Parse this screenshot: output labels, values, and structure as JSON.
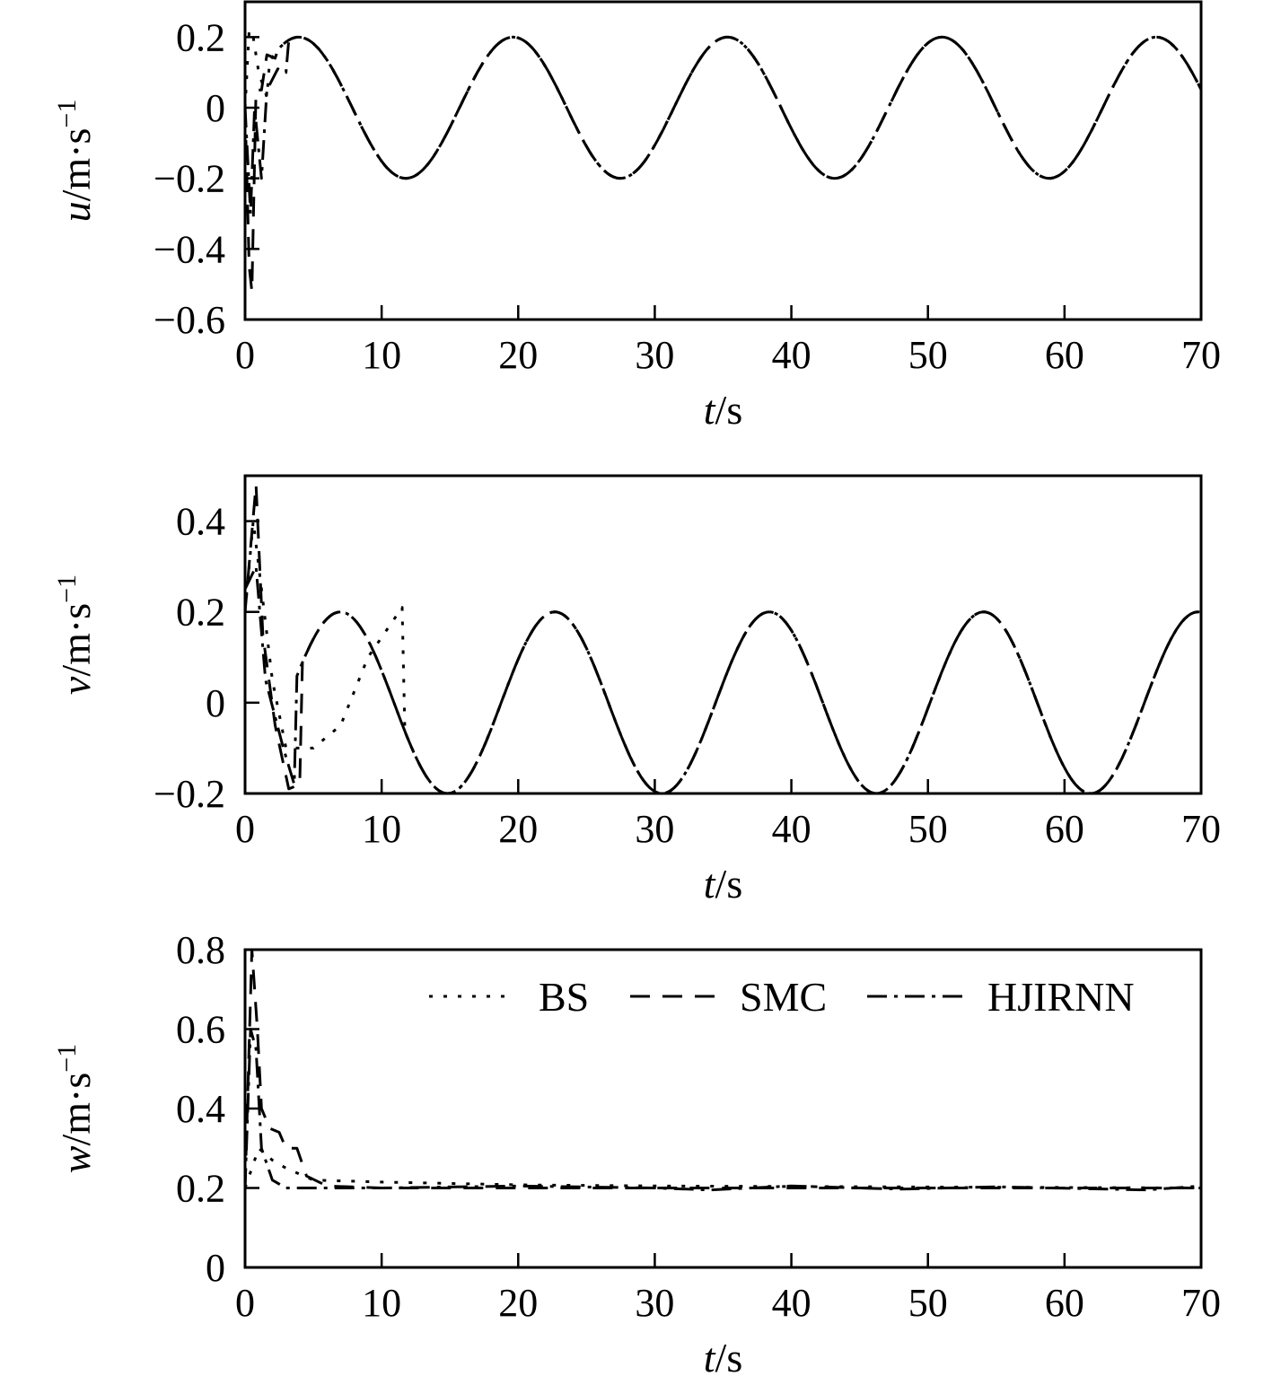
{
  "chart_data": [
    {
      "type": "line",
      "xlabel": {
        "var": "t",
        "unit": "/s"
      },
      "ylabel": {
        "var": "u",
        "unit": "/m·s",
        "exp": "−1"
      },
      "xlim": [
        0,
        70
      ],
      "ylim": [
        -0.6,
        0.3
      ],
      "xticks": [
        0,
        10,
        20,
        30,
        40,
        50,
        60,
        70
      ],
      "xtick_labels": [
        "0",
        "10",
        "20",
        "30",
        "40",
        "50",
        "60",
        "70"
      ],
      "yticks": [
        -0.6,
        -0.4,
        -0.2,
        0,
        0.2
      ],
      "ytick_labels": [
        "−0.6",
        "−0.4",
        "−0.2",
        "0",
        "0.2"
      ],
      "steady": {
        "kind": "sin",
        "amplitude": 0.2,
        "period": 15.7,
        "phase_deg": 0
      },
      "series": [
        {
          "name": "BS",
          "style": "dotted",
          "transient": [
            [
              0,
              0
            ],
            [
              0.3,
              0.22
            ],
            [
              0.6,
              0.2
            ],
            [
              1.0,
              0.1
            ],
            [
              1.6,
              0.03
            ]
          ]
        },
        {
          "name": "SMC",
          "style": "dashed",
          "transient": [
            [
              0,
              0
            ],
            [
              0.3,
              -0.45
            ],
            [
              0.5,
              -0.52
            ],
            [
              0.8,
              0.05
            ],
            [
              1.2,
              0.05
            ],
            [
              1.6,
              0.15
            ],
            [
              2.2,
              0.14
            ]
          ]
        },
        {
          "name": "HJIRNN",
          "style": "dashdot",
          "transient": [
            [
              0,
              0
            ],
            [
              0.4,
              -0.3
            ],
            [
              0.7,
              0
            ],
            [
              1.2,
              -0.2
            ],
            [
              1.6,
              0.05
            ],
            [
              2.4,
              0.11
            ],
            [
              3.0,
              0.1
            ]
          ]
        }
      ]
    },
    {
      "type": "line",
      "xlabel": {
        "var": "t",
        "unit": "/s"
      },
      "ylabel": {
        "var": "v",
        "unit": "/m·s",
        "exp": "−1"
      },
      "xlim": [
        0,
        70
      ],
      "ylim": [
        -0.2,
        0.5
      ],
      "xticks": [
        0,
        10,
        20,
        30,
        40,
        50,
        60,
        70
      ],
      "xtick_labels": [
        "0",
        "10",
        "20",
        "30",
        "40",
        "50",
        "60",
        "70"
      ],
      "yticks": [
        -0.2,
        0,
        0.2,
        0.4
      ],
      "ytick_labels": [
        "−0.2",
        "0",
        "0.2",
        "0.4"
      ],
      "steady": {
        "kind": "sin",
        "amplitude": 0.2,
        "period": 15.7,
        "phase_deg": -70
      },
      "series": [
        {
          "name": "BS",
          "style": "dotted",
          "transient": [
            [
              0,
              0.2
            ],
            [
              0.6,
              0.4
            ],
            [
              1.2,
              0.25
            ],
            [
              2.0,
              0.05
            ],
            [
              3.0,
              -0.1
            ],
            [
              5.0,
              -0.1
            ],
            [
              7.0,
              -0.05
            ],
            [
              9.0,
              0.1
            ],
            [
              11.5,
              0.21
            ]
          ]
        },
        {
          "name": "SMC",
          "style": "dashed",
          "transient": [
            [
              0,
              0.2
            ],
            [
              0.8,
              0.48
            ],
            [
              1.3,
              0.15
            ],
            [
              2.2,
              -0.05
            ],
            [
              3.2,
              -0.19
            ],
            [
              4.0,
              -0.18
            ]
          ]
        },
        {
          "name": "HJIRNN",
          "style": "dashdot",
          "transient": [
            [
              0,
              0.25
            ],
            [
              0.8,
              0.3
            ],
            [
              1.5,
              0.05
            ],
            [
              2.8,
              -0.1
            ],
            [
              3.6,
              -0.18
            ]
          ]
        }
      ]
    },
    {
      "type": "line",
      "xlabel": {
        "var": "t",
        "unit": "/s"
      },
      "ylabel": {
        "var": "w",
        "unit": "/m·s",
        "exp": "−1"
      },
      "xlim": [
        0,
        70
      ],
      "ylim": [
        0,
        0.8
      ],
      "xticks": [
        0,
        10,
        20,
        30,
        40,
        50,
        60,
        70
      ],
      "xtick_labels": [
        "0",
        "10",
        "20",
        "30",
        "40",
        "50",
        "60",
        "70"
      ],
      "yticks": [
        0,
        0.2,
        0.4,
        0.6,
        0.8
      ],
      "ytick_labels": [
        "0",
        "0.2",
        "0.4",
        "0.6",
        "0.8"
      ],
      "legend": {
        "placement": "top-right"
      },
      "series": [
        {
          "name": "BS",
          "style": "dotted",
          "points": [
            [
              0,
              0.2
            ],
            [
              1.0,
              0.3
            ],
            [
              2.0,
              0.27
            ],
            [
              3.0,
              0.25
            ],
            [
              5.0,
              0.22
            ],
            [
              10,
              0.215
            ],
            [
              20,
              0.208
            ],
            [
              30,
              0.205
            ],
            [
              70,
              0.2
            ]
          ]
        },
        {
          "name": "SMC",
          "style": "dashed",
          "points": [
            [
              0,
              0.2
            ],
            [
              0.5,
              0.8
            ],
            [
              0.9,
              0.6
            ],
            [
              1.2,
              0.4
            ],
            [
              1.8,
              0.35
            ],
            [
              2.5,
              0.34
            ],
            [
              3.0,
              0.3
            ],
            [
              3.8,
              0.3
            ],
            [
              4.5,
              0.23
            ],
            [
              6.0,
              0.205
            ],
            [
              10,
              0.2
            ],
            [
              70,
              0.2
            ]
          ]
        },
        {
          "name": "HJIRNN",
          "style": "dashdot",
          "points": [
            [
              0,
              0.2
            ],
            [
              0.4,
              0.6
            ],
            [
              0.8,
              0.55
            ],
            [
              1.2,
              0.3
            ],
            [
              2.0,
              0.22
            ],
            [
              3.0,
              0.2
            ],
            [
              10,
              0.2
            ],
            [
              20,
              0.205
            ],
            [
              30,
              0.2
            ],
            [
              34,
              0.195
            ],
            [
              40,
              0.205
            ],
            [
              48,
              0.197
            ],
            [
              55,
              0.203
            ],
            [
              66,
              0.195
            ],
            [
              70,
              0.205
            ]
          ]
        }
      ]
    }
  ]
}
